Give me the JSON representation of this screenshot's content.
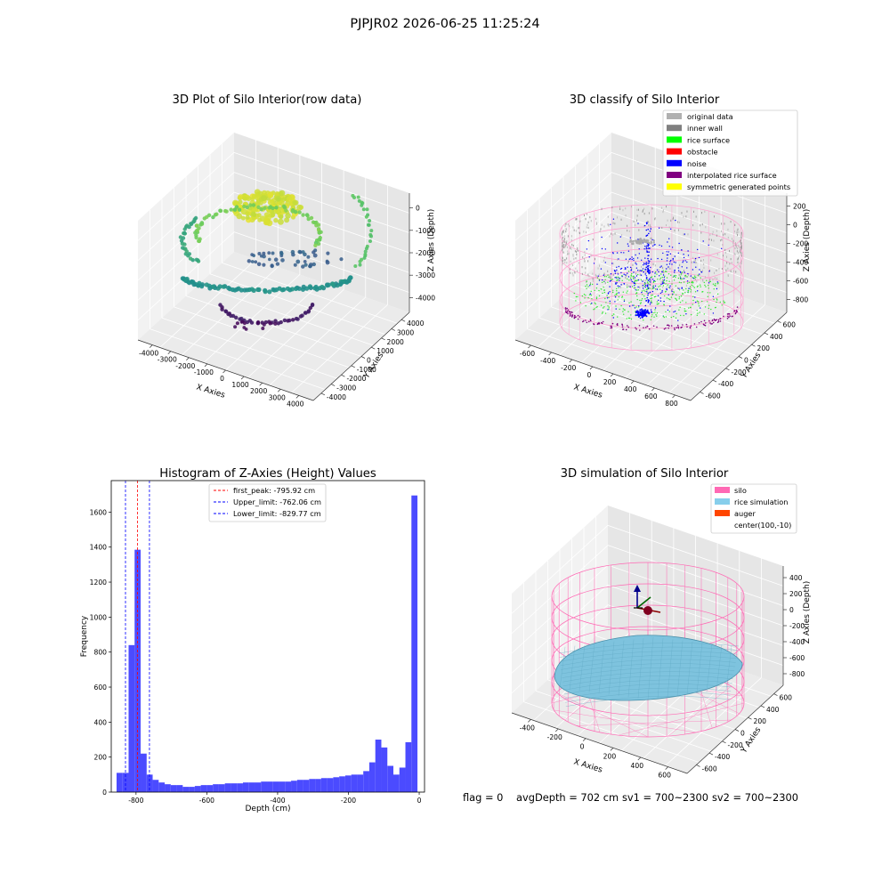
{
  "suptitle": "PJPJR02 2026-06-25 11:25:24",
  "footer": {
    "flag": "flag = 0",
    "avg_depth": "avgDepth = 702 cm",
    "sv1": "sv1 = 700~2300",
    "sv2": "sv2 = 700~2300"
  },
  "panel1": {
    "title": "3D Plot of Silo Interior(row data)",
    "xlabel": "X Axies",
    "ylabel": "Y Axies",
    "zlabel": "Z Axies (Depth)",
    "xticks": [
      "-4000",
      "-3000",
      "-2000",
      "-1000",
      "0",
      "1000",
      "2000",
      "3000",
      "4000"
    ],
    "yticks": [
      "-4000",
      "-3000",
      "-2000",
      "-1000",
      "0",
      "1000",
      "2000",
      "3000",
      "4000"
    ],
    "zticks": [
      "0",
      "-1000",
      "-2000",
      "-3000",
      "-4000"
    ]
  },
  "panel2": {
    "title": "3D classify of Silo Interior",
    "xlabel": "X Axies",
    "ylabel": "Y Axies",
    "zlabel": "Z Axies (Depth)",
    "xticks": [
      "-600",
      "-400",
      "-200",
      "0",
      "200",
      "400",
      "600",
      "800"
    ],
    "yticks": [
      "-600",
      "-400",
      "-200",
      "0",
      "200",
      "400",
      "600"
    ],
    "zticks": [
      "200",
      "0",
      "-200",
      "-400",
      "-600",
      "-800"
    ],
    "legend": [
      {
        "label": "original data",
        "color": "#b0b0b0"
      },
      {
        "label": "inner wall",
        "color": "#808080"
      },
      {
        "label": "rice surface",
        "color": "#00ff00"
      },
      {
        "label": "obstacle",
        "color": "#ff0000"
      },
      {
        "label": "noise",
        "color": "#0000ff"
      },
      {
        "label": "interpolated rice surface",
        "color": "#800080"
      },
      {
        "label": "symmetric generated points",
        "color": "#ffff00"
      }
    ]
  },
  "panel3": {
    "title": "Histogram of Z-Axies (Height) Values",
    "xlabel": "Depth (cm)",
    "ylabel": "Frequency",
    "xticks": [
      "-800",
      "-600",
      "-400",
      "-200",
      "0"
    ],
    "yticks": [
      "0",
      "200",
      "400",
      "600",
      "800",
      "1000",
      "1200",
      "1400",
      "1600"
    ],
    "legend": [
      {
        "label": "first_peak: -795.92 cm",
        "color": "#ff0000"
      },
      {
        "label": "Upper_limit: -762.06 cm",
        "color": "#0000ff"
      },
      {
        "label": "Lower_limit: -829.77 cm",
        "color": "#0000ff"
      }
    ]
  },
  "panel4": {
    "title": "3D simulation of Silo Interior",
    "xlabel": "X Axies",
    "ylabel": "Y Axies",
    "zlabel": "Z Axies (Depth)",
    "xticks": [
      "-400",
      "-200",
      "0",
      "200",
      "400",
      "600"
    ],
    "yticks": [
      "-600",
      "-400",
      "-200",
      "0",
      "200",
      "400",
      "600"
    ],
    "zticks": [
      "400",
      "200",
      "0",
      "-200",
      "-400",
      "-600",
      "-800"
    ],
    "legend": [
      {
        "label": "silo",
        "color": "#ff69b4"
      },
      {
        "label": "rice simulation",
        "color": "#87ceeb"
      },
      {
        "label": "auger",
        "color": "#ff4500"
      },
      {
        "label": "center(100,-10)",
        "color": ""
      }
    ]
  },
  "chart_data": [
    {
      "type": "scatter",
      "title": "3D Plot of Silo Interior(row data)",
      "xlabel": "X Axies",
      "ylabel": "Y Axies",
      "zlabel": "Z Axies (Depth)",
      "xlim": [
        -4500,
        4500
      ],
      "ylim": [
        -4500,
        4500
      ],
      "zlim": [
        -5000,
        0
      ],
      "colormap": "viridis",
      "grid": true
    },
    {
      "type": "scatter",
      "title": "3D classify of Silo Interior",
      "xlabel": "X Axies",
      "ylabel": "Y Axies",
      "zlabel": "Z Axies (Depth)",
      "xlim": [
        -650,
        850
      ],
      "ylim": [
        -700,
        700
      ],
      "zlim": [
        -900,
        250
      ],
      "series": [
        {
          "name": "original data"
        },
        {
          "name": "inner wall"
        },
        {
          "name": "rice surface"
        },
        {
          "name": "obstacle"
        },
        {
          "name": "noise"
        },
        {
          "name": "interpolated rice surface"
        },
        {
          "name": "symmetric generated points"
        }
      ],
      "legend": "top-right",
      "grid": true
    },
    {
      "type": "bar",
      "title": "Histogram of Z-Axies (Height) Values",
      "xlabel": "Depth (cm)",
      "ylabel": "Frequency",
      "xlim": [
        -870,
        15
      ],
      "ylim": [
        0,
        1780
      ],
      "bin_edges": [
        -855,
        -838,
        -821,
        -804,
        -787,
        -770,
        -753,
        -736,
        -719,
        -702,
        -685,
        -668,
        -651,
        -634,
        -617,
        -600,
        -583,
        -566,
        -549,
        -532,
        -515,
        -498,
        -481,
        -464,
        -447,
        -430,
        -413,
        -396,
        -379,
        -362,
        -345,
        -328,
        -311,
        -294,
        -277,
        -260,
        -243,
        -226,
        -209,
        -192,
        -175,
        -158,
        -141,
        -124,
        -107,
        -90,
        -73,
        -56,
        -39,
        -22,
        -5
      ],
      "values": [
        110,
        110,
        840,
        1385,
        220,
        100,
        70,
        55,
        45,
        40,
        40,
        30,
        30,
        35,
        40,
        40,
        45,
        45,
        50,
        50,
        50,
        55,
        55,
        55,
        60,
        60,
        60,
        60,
        60,
        65,
        70,
        70,
        75,
        75,
        80,
        80,
        85,
        90,
        95,
        100,
        100,
        120,
        170,
        300,
        255,
        150,
        100,
        140,
        285,
        1695
      ],
      "vlines": [
        {
          "name": "first_peak: -795.92 cm",
          "x": -795.92,
          "color": "#ff0000"
        },
        {
          "name": "Upper_limit: -762.06 cm",
          "x": -762.06,
          "color": "#0000ff"
        },
        {
          "name": "Lower_limit: -829.77 cm",
          "x": -829.77,
          "color": "#0000ff"
        }
      ],
      "legend": "top-center"
    },
    {
      "type": "surface",
      "title": "3D simulation of Silo Interior",
      "xlabel": "X Axies",
      "ylabel": "Y Axies",
      "zlabel": "Z Axies (Depth)",
      "xlim": [
        -500,
        700
      ],
      "ylim": [
        -700,
        700
      ],
      "zlim": [
        -950,
        450
      ],
      "series": [
        {
          "name": "silo"
        },
        {
          "name": "rice simulation"
        },
        {
          "name": "auger"
        },
        {
          "name": "center(100,-10)"
        }
      ],
      "legend": "top-right",
      "grid": true
    }
  ]
}
